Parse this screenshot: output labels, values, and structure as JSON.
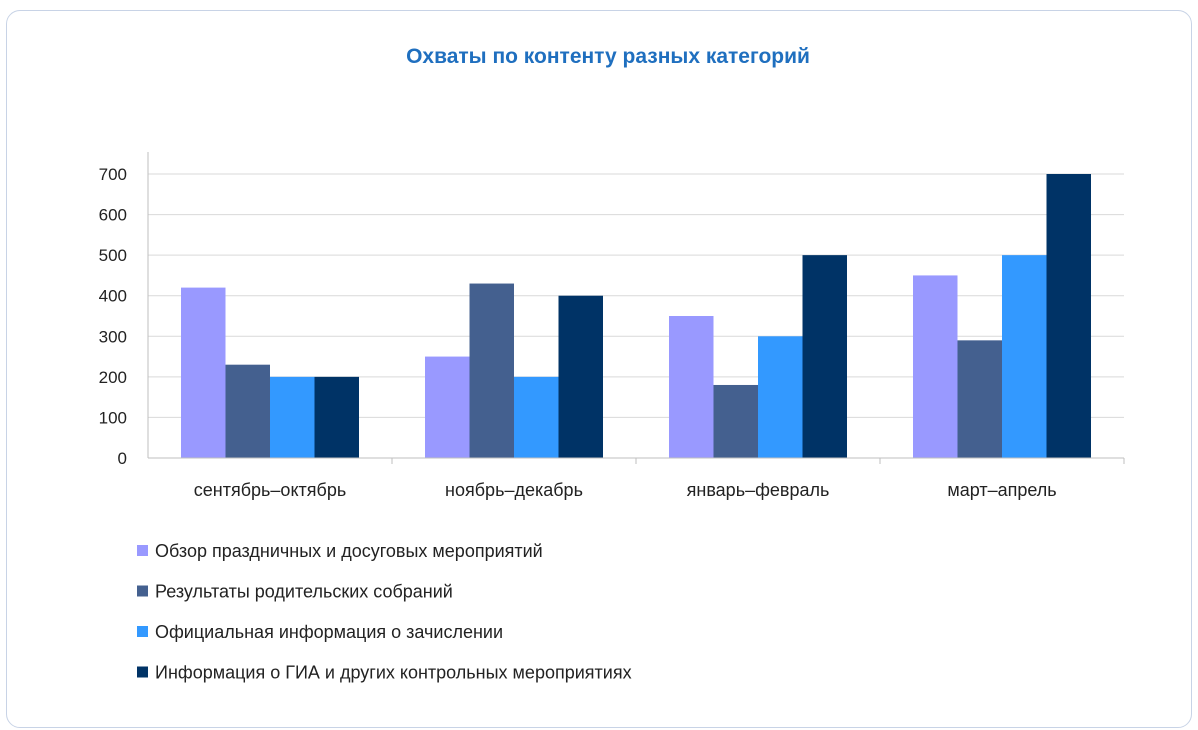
{
  "chart_data": {
    "type": "bar",
    "title": "Охваты по контенту разных категорий",
    "categories": [
      "сентябрь–октябрь",
      "ноябрь–декабрь",
      "январь–февраль",
      "март–апрель"
    ],
    "series": [
      {
        "name": "Обзор праздничных и досуговых мероприятий",
        "values": [
          420,
          250,
          350,
          450
        ],
        "color": "#9999ff"
      },
      {
        "name": "Результаты родительских собраний",
        "values": [
          230,
          430,
          180,
          290
        ],
        "color": "#44608f"
      },
      {
        "name": "Официальная информация о зачислении",
        "values": [
          200,
          200,
          300,
          500
        ],
        "color": "#3399ff"
      },
      {
        "name": "Информация о ГИА и других контрольных мероприятиях",
        "values": [
          200,
          400,
          500,
          700
        ],
        "color": "#003366"
      }
    ],
    "yticks": [
      0,
      100,
      200,
      300,
      400,
      500,
      600,
      700
    ],
    "ylim": [
      0,
      700
    ],
    "grid": true,
    "legend_position": "bottom",
    "title_color": "#1f6fbf"
  }
}
